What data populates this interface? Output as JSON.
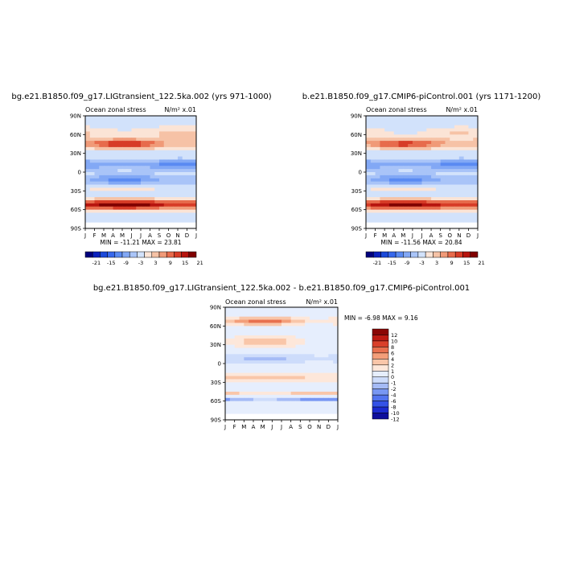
{
  "colors": {
    "fill_scale": [
      "#00007d",
      "#0b21bd",
      "#1b49d9",
      "#3768ec",
      "#5a8af2",
      "#82a8f5",
      "#a9c4f8",
      "#d2e2fb",
      "#fbe4d6",
      "#f6c2a6",
      "#f09a78",
      "#e76b4c",
      "#d73c27",
      "#b7150f",
      "#800000"
    ],
    "diff_scale": [
      "#0e0e9c",
      "#1c2bd0",
      "#3452e6",
      "#5274ef",
      "#7897f3",
      "#a5bbf6",
      "#cddcfb",
      "#e6eefd",
      "#fde7da",
      "#f9c6a9",
      "#f39e79",
      "#e8704e",
      "#d9402a",
      "#bd1a12",
      "#8a0604"
    ]
  },
  "chart_data": [
    {
      "type": "heatmap",
      "title": "bg.e21.B1850.f09_g17.LIGtransient_122.5ka.002 (yrs 971-1000)",
      "subtitle_left": "Ocean zonal stress",
      "subtitle_right": "N/m² x.01",
      "x_ticks": [
        "J",
        "F",
        "M",
        "A",
        "M",
        "J",
        "J",
        "A",
        "S",
        "O",
        "N",
        "D",
        "J"
      ],
      "y_ticks": [
        "90N",
        "60N",
        "30N",
        "0",
        "30S",
        "60S",
        "90S"
      ],
      "stats": "MIN = -11.21 MAX = 23.81",
      "colorbar_labels": [
        "-21",
        "-15",
        "-9",
        "-3",
        "3",
        "9",
        "15",
        "21"
      ],
      "features": [
        {
          "lat": 62,
          "amp": 4,
          "width": 10,
          "seasonal": -2
        },
        {
          "lat": 45,
          "amp": 12,
          "width": 8,
          "seasonal": 6
        },
        {
          "lat": 12,
          "amp": -7,
          "width": 8,
          "seasonal": 2
        },
        {
          "lat": -12,
          "amp": -6,
          "width": 8,
          "seasonal": -3
        },
        {
          "lat": -27,
          "amp": 2,
          "width": 6,
          "seasonal": 1
        },
        {
          "lat": -52,
          "amp": 20,
          "width": 8,
          "seasonal": 4
        }
      ]
    },
    {
      "type": "heatmap",
      "title": "b.e21.B1850.f09_g17.CMIP6-piControl.001 (yrs 1171-1200)",
      "subtitle_left": "Ocean zonal stress",
      "subtitle_right": "N/m² x.01",
      "x_ticks": [
        "J",
        "F",
        "M",
        "A",
        "M",
        "J",
        "J",
        "A",
        "S",
        "O",
        "N",
        "D",
        "J"
      ],
      "y_ticks": [
        "90N",
        "60N",
        "30N",
        "0",
        "30S",
        "60S",
        "90S"
      ],
      "stats": "MIN = -11.56 MAX = 20.84",
      "colorbar_labels": [
        "-21",
        "-15",
        "-9",
        "-3",
        "3",
        "9",
        "15",
        "21"
      ],
      "features": [
        {
          "lat": 62,
          "amp": 3,
          "width": 10,
          "seasonal": -2
        },
        {
          "lat": 45,
          "amp": 11,
          "width": 8,
          "seasonal": 5
        },
        {
          "lat": 12,
          "amp": -7,
          "width": 8,
          "seasonal": 2
        },
        {
          "lat": -12,
          "amp": -6,
          "width": 8,
          "seasonal": -3
        },
        {
          "lat": -27,
          "amp": 2,
          "width": 6,
          "seasonal": 1
        },
        {
          "lat": -52,
          "amp": 19,
          "width": 8,
          "seasonal": 3
        }
      ]
    },
    {
      "type": "heatmap",
      "title": "bg.e21.B1850.f09_g17.LIGtransient_122.5ka.002 - b.e21.B1850.f09_g17.CMIP6-piControl.001",
      "subtitle_left": "Ocean zonal stress",
      "subtitle_right": "N/m² x.01",
      "x_ticks": [
        "J",
        "F",
        "M",
        "A",
        "M",
        "J",
        "J",
        "A",
        "S",
        "O",
        "N",
        "D",
        "J"
      ],
      "y_ticks": [
        "90N",
        "60N",
        "30N",
        "0",
        "30S",
        "60S",
        "90S"
      ],
      "stats": "MIN = -6.98 MAX = 9.16",
      "colorbar_labels": [
        "12",
        "10",
        "8",
        "6",
        "4",
        "2",
        "1",
        "0",
        "-1",
        "-2",
        "-4",
        "-6",
        "-8",
        "-10",
        "-12"
      ],
      "features": [
        {
          "lat": 68,
          "amp": 4,
          "width": 6,
          "seasonal": 3
        },
        {
          "lat": 35,
          "amp": 2,
          "width": 8,
          "seasonal": 2
        },
        {
          "lat": 8,
          "amp": -2,
          "width": 8,
          "seasonal": -1
        },
        {
          "lat": -22,
          "amp": 3,
          "width": 6,
          "seasonal": 1
        },
        {
          "lat": -55,
          "amp": -5,
          "width": 5,
          "seasonal": 2
        },
        {
          "lat": -50,
          "amp": 4,
          "width": 5,
          "seasonal": -2
        }
      ]
    }
  ]
}
